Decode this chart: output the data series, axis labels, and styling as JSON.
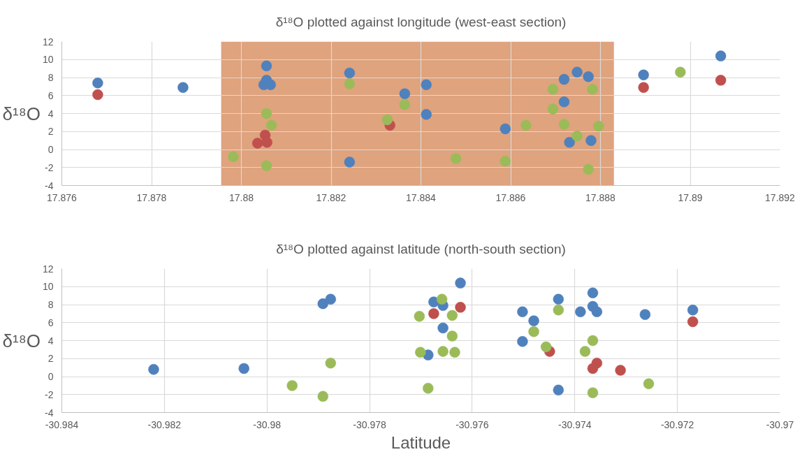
{
  "chart_data": [
    {
      "type": "scatter",
      "title": "δ¹⁸O plotted against longitude (west-east section)",
      "ylabel": "δ¹⁸O",
      "marker": "circle",
      "grid": true,
      "xlim": [
        17.876,
        17.892
      ],
      "xticks": [
        17.876,
        17.878,
        17.88,
        17.882,
        17.884,
        17.886,
        17.888,
        17.89,
        17.892
      ],
      "ylim": [
        -4,
        12
      ],
      "yticks": [
        -4,
        -2,
        0,
        2,
        4,
        6,
        8,
        10,
        12
      ],
      "bands": [
        {
          "axis": "x",
          "from": 17.87955,
          "to": 17.8883,
          "color": "#dfa37e"
        }
      ],
      "series": [
        {
          "color": "#4f81bd",
          "x": [
            17.8768,
            17.8787,
            17.88056,
            17.88056,
            17.8805,
            17.88065,
            17.88241,
            17.88241,
            17.88364,
            17.88412,
            17.88412,
            17.88588,
            17.88719,
            17.88719,
            17.88748,
            17.88731,
            17.88773,
            17.88779,
            17.88896,
            17.89068
          ],
          "values": [
            7.4,
            6.9,
            9.3,
            7.7,
            7.2,
            7.2,
            8.5,
            -1.4,
            6.2,
            7.2,
            3.9,
            2.3,
            7.8,
            5.3,
            8.6,
            0.8,
            8.1,
            1.0,
            8.3,
            10.4
          ]
        },
        {
          "color": "#c0504d",
          "x": [
            17.8768,
            17.88053,
            17.88036,
            17.88057,
            17.88331,
            17.88896,
            17.89068
          ],
          "values": [
            6.1,
            1.6,
            0.7,
            0.8,
            2.7,
            6.9,
            7.7
          ]
        },
        {
          "color": "#9bbb59",
          "x": [
            17.88241,
            17.88056,
            17.88067,
            17.87982,
            17.88056,
            17.88325,
            17.88364,
            17.88478,
            17.88588,
            17.88634,
            17.88694,
            17.88694,
            17.88719,
            17.88748,
            17.88782,
            17.88796,
            17.88773,
            17.88978
          ],
          "values": [
            7.3,
            4.0,
            2.7,
            -0.8,
            -1.8,
            3.3,
            5.0,
            -1.0,
            -1.3,
            2.7,
            6.7,
            4.5,
            2.8,
            1.5,
            6.7,
            2.6,
            -2.2,
            8.6
          ]
        }
      ]
    },
    {
      "type": "scatter",
      "title": "δ¹⁸O plotted against latitude (north-south section)",
      "xlabel": "Latitude",
      "ylabel": "δ¹⁸O",
      "marker": "circle",
      "grid": true,
      "xlim": [
        -30.984,
        -30.97
      ],
      "xticks": [
        -30.984,
        -30.982,
        -30.98,
        -30.978,
        -30.976,
        -30.974,
        -30.972,
        -30.97
      ],
      "ylim": [
        -4,
        12
      ],
      "yticks": [
        -4,
        -2,
        0,
        2,
        4,
        6,
        8,
        10,
        12
      ],
      "series": [
        {
          "color": "#4f81bd",
          "x": [
            -30.98221,
            -30.98045,
            -30.97891,
            -30.97876,
            -30.97623,
            -30.97675,
            -30.97657,
            -30.97657,
            -30.97686,
            -30.97502,
            -30.9748,
            -30.97502,
            -30.97432,
            -30.97432,
            -30.97389,
            -30.97365,
            -30.97365,
            -30.97357,
            -30.97263,
            -30.9717
          ],
          "values": [
            0.8,
            0.9,
            8.1,
            8.6,
            10.4,
            8.3,
            7.9,
            5.4,
            2.4,
            7.2,
            6.2,
            3.9,
            8.6,
            -1.5,
            7.2,
            9.3,
            7.8,
            7.2,
            6.9,
            7.4
          ]
        },
        {
          "color": "#c0504d",
          "x": [
            -30.97623,
            -30.97675,
            -30.97449,
            -30.97357,
            -30.97365,
            -30.97311,
            -30.9717
          ],
          "values": [
            7.7,
            7.0,
            2.8,
            1.5,
            0.9,
            0.7,
            6.1
          ]
        },
        {
          "color": "#9bbb59",
          "x": [
            -30.97876,
            -30.97951,
            -30.97891,
            -30.97659,
            -30.97703,
            -30.97639,
            -30.97639,
            -30.97701,
            -30.97657,
            -30.97634,
            -30.97686,
            -30.9748,
            -30.97456,
            -30.97432,
            -30.97365,
            -30.9738,
            -30.97365,
            -30.97256
          ],
          "values": [
            1.5,
            -1.0,
            -2.2,
            8.6,
            6.7,
            6.8,
            4.5,
            2.7,
            2.8,
            2.7,
            -1.3,
            5.0,
            3.3,
            7.4,
            4.0,
            2.8,
            -1.8,
            -0.8
          ]
        }
      ]
    }
  ]
}
